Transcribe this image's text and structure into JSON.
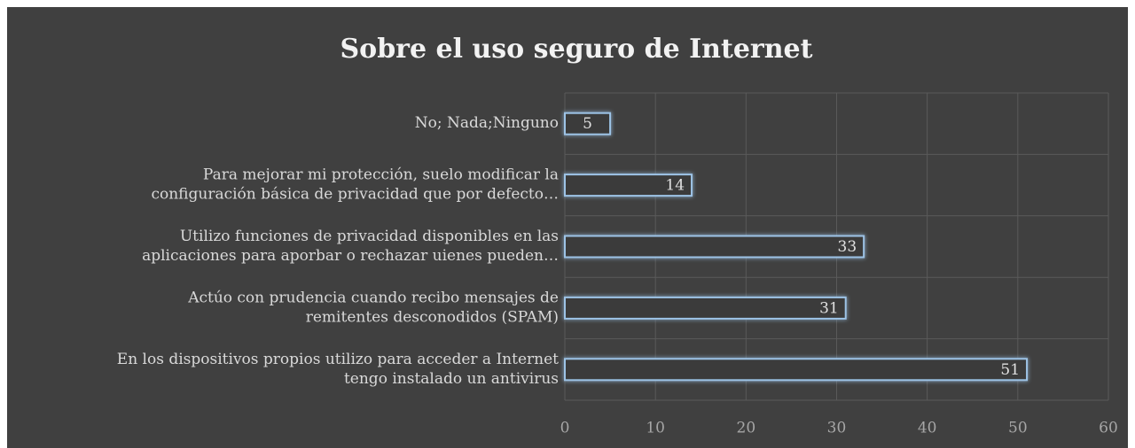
{
  "chart_data": {
    "type": "bar",
    "orientation": "horizontal",
    "title": "Sobre el uso seguro de Internet",
    "categories": [
      [
        "No; Nada;Ninguno"
      ],
      [
        "Para mejorar mi protección, suelo modificar la",
        "configuración básica de privacidad que por defecto…"
      ],
      [
        "Utilizo funciones de privacidad disponibles en las",
        "aplicaciones para aporbar o rechazar uienes pueden…"
      ],
      [
        "Actúo con prudencia cuando recibo mensajes de",
        "remitentes desconodidos (SPAM)"
      ],
      [
        "En los dispositivos propios utilizo para acceder a Internet",
        "tengo instalado un antivirus"
      ]
    ],
    "values": [
      5,
      14,
      33,
      31,
      51
    ],
    "color": "#9dc3e6",
    "xlim": [
      0,
      60
    ],
    "xticks": [
      0,
      10,
      20,
      30,
      40,
      50,
      60
    ],
    "grid": true
  }
}
